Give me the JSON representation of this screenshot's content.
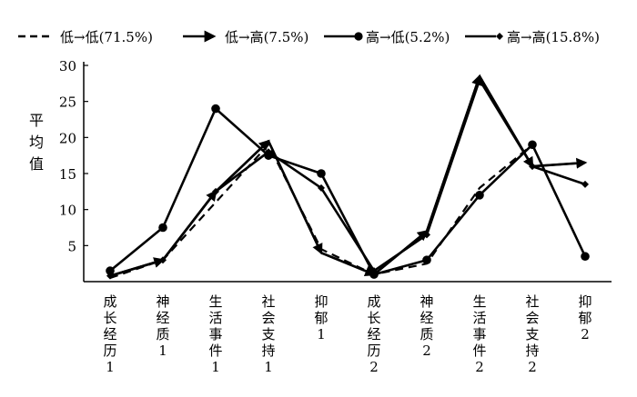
{
  "chart_data": {
    "type": "line",
    "ylabel": "平均值",
    "ylim": [
      0,
      30
    ],
    "yticks": [
      5,
      10,
      15,
      20,
      25,
      30
    ],
    "grid": false,
    "legend_position": "top",
    "categories": [
      "成长经历1",
      "神经质1",
      "生活事件1",
      "社会支持1",
      "抑郁1",
      "成长经历2",
      "神经质2",
      "生活事件2",
      "社会支持2",
      "抑郁2"
    ],
    "category_label_lines": [
      [
        "成",
        "长",
        "经",
        "历",
        "1"
      ],
      [
        "神",
        "经",
        "质",
        "1"
      ],
      [
        "生",
        "活",
        "事",
        "件",
        "1"
      ],
      [
        "社",
        "会",
        "支",
        "持",
        "1"
      ],
      [
        "抑",
        "郁",
        "1"
      ],
      [
        "成",
        "长",
        "经",
        "历",
        "2"
      ],
      [
        "神",
        "经",
        "质",
        "2"
      ],
      [
        "生",
        "活",
        "事",
        "件",
        "2"
      ],
      [
        "社",
        "会",
        "支",
        "持",
        "2"
      ],
      [
        "抑",
        "郁",
        "2"
      ]
    ],
    "series": [
      {
        "name": "低→低(71.5%)",
        "style": "dashed",
        "marker": "none",
        "color": "#000000",
        "values": [
          0.5,
          3.0,
          11.0,
          19.0,
          4.5,
          1.0,
          2.5,
          13.0,
          19.0,
          3.5
        ]
      },
      {
        "name": "低→高(7.5%)",
        "style": "solid-arrow",
        "marker": "arrow",
        "color": "#000000",
        "values": [
          0.8,
          3.0,
          12.5,
          19.5,
          4.0,
          1.0,
          7.0,
          28.5,
          16.0,
          16.5
        ]
      },
      {
        "name": "高→低(5.2%)",
        "style": "solid",
        "marker": "circle",
        "color": "#000000",
        "values": [
          1.5,
          7.5,
          24.0,
          17.5,
          15.0,
          1.0,
          3.0,
          12.0,
          19.0,
          3.5
        ]
      },
      {
        "name": "高→高(15.8%)",
        "style": "solid",
        "marker": "diamond",
        "color": "#000000",
        "values": [
          0.8,
          3.0,
          12.5,
          18.0,
          13.0,
          1.5,
          6.5,
          28.0,
          16.0,
          13.5
        ]
      }
    ]
  }
}
